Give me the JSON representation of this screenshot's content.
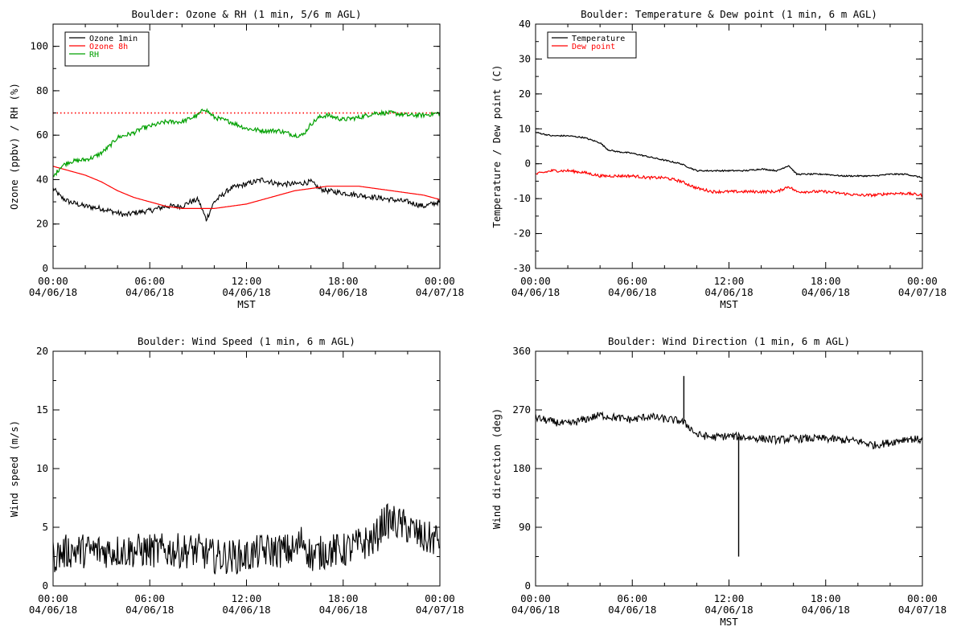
{
  "chart_data": [
    {
      "type": "line",
      "title": "Boulder: Ozone & RH (1 min, 5/6 m AGL)",
      "ylabel": "Ozone (ppbv) / RH (%)",
      "xlabel": "MST",
      "ylim": [
        0,
        110
      ],
      "yticks": [
        0,
        20,
        40,
        60,
        80,
        100
      ],
      "xticks": [
        {
          "hour": 0,
          "time": "00:00",
          "date": "04/06/18"
        },
        {
          "hour": 6,
          "time": "06:00",
          "date": "04/06/18"
        },
        {
          "hour": 12,
          "time": "12:00",
          "date": "04/06/18"
        },
        {
          "hour": 18,
          "time": "18:00",
          "date": "04/06/18"
        },
        {
          "hour": 24,
          "time": "00:00",
          "date": "04/07/18"
        }
      ],
      "legend": "top-left",
      "reference_line": {
        "value": 70,
        "color": "#ff0000",
        "style": "dotted"
      },
      "series": [
        {
          "name": "Ozone 1min",
          "color": "#000000",
          "noise": 1.2,
          "points": [
            [
              0,
              36
            ],
            [
              0.5,
              32
            ],
            [
              1,
              30
            ],
            [
              2,
              28
            ],
            [
              3,
              27
            ],
            [
              4,
              25
            ],
            [
              4.5,
              24
            ],
            [
              5,
              25
            ],
            [
              6,
              26
            ],
            [
              7,
              28
            ],
            [
              8,
              28
            ],
            [
              8.5,
              30
            ],
            [
              9,
              31
            ],
            [
              9.5,
              22
            ],
            [
              10,
              30
            ],
            [
              10.5,
              33
            ],
            [
              11,
              36
            ],
            [
              12,
              38
            ],
            [
              13,
              40
            ],
            [
              14,
              38
            ],
            [
              15,
              38
            ],
            [
              16,
              39
            ],
            [
              16.5,
              36
            ],
            [
              17,
              35
            ],
            [
              18,
              34
            ],
            [
              19,
              33
            ],
            [
              20,
              32
            ],
            [
              21,
              31
            ],
            [
              22,
              30
            ],
            [
              23,
              28
            ],
            [
              24,
              30
            ]
          ]
        },
        {
          "name": "Ozone 8h",
          "color": "#ff0000",
          "noise": 0,
          "points": [
            [
              0,
              46
            ],
            [
              1,
              44
            ],
            [
              2,
              42
            ],
            [
              3,
              39
            ],
            [
              4,
              35
            ],
            [
              5,
              32
            ],
            [
              6,
              30
            ],
            [
              7,
              28
            ],
            [
              8,
              27
            ],
            [
              9,
              27
            ],
            [
              10,
              27
            ],
            [
              11,
              28
            ],
            [
              12,
              29
            ],
            [
              13,
              31
            ],
            [
              14,
              33
            ],
            [
              15,
              35
            ],
            [
              16,
              36
            ],
            [
              17,
              37
            ],
            [
              18,
              37
            ],
            [
              19,
              37
            ],
            [
              20,
              36
            ],
            [
              21,
              35
            ],
            [
              22,
              34
            ],
            [
              23,
              33
            ],
            [
              24,
              31
            ]
          ]
        },
        {
          "name": "RH",
          "color": "#00a000",
          "noise": 1.0,
          "points": [
            [
              0,
              41
            ],
            [
              0.5,
              46
            ],
            [
              1,
              48
            ],
            [
              2,
              49
            ],
            [
              2.5,
              50
            ],
            [
              3,
              52
            ],
            [
              3.5,
              55
            ],
            [
              4,
              59
            ],
            [
              5,
              61
            ],
            [
              5.5,
              63
            ],
            [
              6,
              64
            ],
            [
              7,
              66
            ],
            [
              8,
              66
            ],
            [
              9,
              69
            ],
            [
              9.4,
              72
            ],
            [
              10,
              68
            ],
            [
              11,
              66
            ],
            [
              12,
              63
            ],
            [
              13,
              62
            ],
            [
              14,
              62
            ],
            [
              15,
              60
            ],
            [
              15.5,
              60
            ],
            [
              16,
              65
            ],
            [
              16.5,
              68
            ],
            [
              17,
              69
            ],
            [
              18,
              67
            ],
            [
              19,
              68
            ],
            [
              20,
              70
            ],
            [
              21,
              70
            ],
            [
              22,
              69
            ],
            [
              23,
              69
            ],
            [
              24,
              70
            ]
          ]
        }
      ]
    },
    {
      "type": "line",
      "title": "Boulder: Temperature & Dew point (1 min, 6 m AGL)",
      "ylabel": "Temperature / Dew point (C)",
      "xlabel": "MST",
      "ylim": [
        -30,
        40
      ],
      "yticks": [
        -30,
        -20,
        -10,
        0,
        10,
        20,
        30,
        40
      ],
      "xticks": [
        {
          "hour": 0,
          "time": "00:00",
          "date": "04/06/18"
        },
        {
          "hour": 6,
          "time": "06:00",
          "date": "04/06/18"
        },
        {
          "hour": 12,
          "time": "12:00",
          "date": "04/06/18"
        },
        {
          "hour": 18,
          "time": "18:00",
          "date": "04/06/18"
        },
        {
          "hour": 24,
          "time": "00:00",
          "date": "04/07/18"
        }
      ],
      "legend": "top-left",
      "series": [
        {
          "name": "Temperature",
          "color": "#000000",
          "noise": 0.2,
          "points": [
            [
              0,
              9
            ],
            [
              1,
              8
            ],
            [
              2,
              8
            ],
            [
              3,
              7.5
            ],
            [
              4,
              6
            ],
            [
              4.5,
              4
            ],
            [
              5,
              3.5
            ],
            [
              6,
              3
            ],
            [
              7,
              2
            ],
            [
              8,
              1
            ],
            [
              9,
              0
            ],
            [
              9.5,
              -1
            ],
            [
              10,
              -2
            ],
            [
              11,
              -2
            ],
            [
              12,
              -2
            ],
            [
              13,
              -2
            ],
            [
              14,
              -1.5
            ],
            [
              15,
              -2
            ],
            [
              15.7,
              -0.5
            ],
            [
              16.2,
              -3
            ],
            [
              17,
              -3
            ],
            [
              18,
              -3
            ],
            [
              19,
              -3.5
            ],
            [
              20,
              -3.5
            ],
            [
              21,
              -3.5
            ],
            [
              22,
              -3
            ],
            [
              23,
              -3
            ],
            [
              24,
              -4
            ]
          ]
        },
        {
          "name": "Dew point",
          "color": "#ff0000",
          "noise": 0.4,
          "points": [
            [
              0,
              -3
            ],
            [
              1,
              -2
            ],
            [
              2,
              -2
            ],
            [
              3,
              -2.5
            ],
            [
              4,
              -3.5
            ],
            [
              5,
              -3.5
            ],
            [
              6,
              -3.5
            ],
            [
              7,
              -4
            ],
            [
              8,
              -4
            ],
            [
              9,
              -5
            ],
            [
              9.5,
              -6
            ],
            [
              10,
              -7
            ],
            [
              11,
              -8
            ],
            [
              12,
              -8
            ],
            [
              13,
              -8
            ],
            [
              14,
              -8
            ],
            [
              15,
              -8
            ],
            [
              15.7,
              -6.5
            ],
            [
              16.2,
              -8
            ],
            [
              17,
              -8
            ],
            [
              18,
              -8
            ],
            [
              19,
              -8.5
            ],
            [
              20,
              -9
            ],
            [
              21,
              -9
            ],
            [
              22,
              -8.5
            ],
            [
              23,
              -8.5
            ],
            [
              24,
              -9
            ]
          ]
        }
      ]
    },
    {
      "type": "line",
      "title": "Boulder: Wind Speed (1 min, 6 m AGL)",
      "ylabel": "Wind speed (m/s)",
      "xlabel": "",
      "ylim": [
        0,
        20
      ],
      "yticks": [
        0,
        5,
        10,
        15,
        20
      ],
      "xticks": [
        {
          "hour": 0,
          "time": "00:00",
          "date": "04/06/18"
        },
        {
          "hour": 6,
          "time": "06:00",
          "date": "04/06/18"
        },
        {
          "hour": 12,
          "time": "12:00",
          "date": "04/06/18"
        },
        {
          "hour": 18,
          "time": "18:00",
          "date": "04/06/18"
        },
        {
          "hour": 24,
          "time": "00:00",
          "date": "04/07/18"
        }
      ],
      "series": [
        {
          "name": "",
          "color": "#000000",
          "noise": 1.5,
          "points": [
            [
              0,
              2.5
            ],
            [
              1,
              3
            ],
            [
              2,
              3
            ],
            [
              3,
              3
            ],
            [
              4,
              3
            ],
            [
              5,
              3
            ],
            [
              6,
              3
            ],
            [
              7,
              3
            ],
            [
              8,
              3
            ],
            [
              9,
              3
            ],
            [
              10,
              2.5
            ],
            [
              11,
              2.5
            ],
            [
              12,
              2.5
            ],
            [
              13,
              3
            ],
            [
              14,
              3
            ],
            [
              15,
              3
            ],
            [
              15.5,
              4
            ],
            [
              16,
              2.5
            ],
            [
              17,
              3
            ],
            [
              18,
              3
            ],
            [
              19,
              3.5
            ],
            [
              20,
              4
            ],
            [
              20.5,
              5.5
            ],
            [
              21,
              5.5
            ],
            [
              22,
              5
            ],
            [
              23,
              4
            ],
            [
              24,
              4
            ]
          ]
        }
      ]
    },
    {
      "type": "line",
      "title": "Boulder: Wind Direction (1 min, 6 m AGL)",
      "ylabel": "Wind direction (deg)",
      "xlabel": "MST",
      "ylim": [
        0,
        360
      ],
      "yticks": [
        0,
        90,
        180,
        270,
        360
      ],
      "xticks": [
        {
          "hour": 0,
          "time": "00:00",
          "date": "04/06/18"
        },
        {
          "hour": 6,
          "time": "06:00",
          "date": "04/06/18"
        },
        {
          "hour": 12,
          "time": "12:00",
          "date": "04/06/18"
        },
        {
          "hour": 18,
          "time": "18:00",
          "date": "04/06/18"
        },
        {
          "hour": 24,
          "time": "00:00",
          "date": "04/07/18"
        }
      ],
      "spikes": [
        [
          9.2,
          322
        ],
        [
          12.6,
          45
        ]
      ],
      "series": [
        {
          "name": "",
          "color": "#000000",
          "noise": 6,
          "points": [
            [
              0,
              258
            ],
            [
              1,
              252
            ],
            [
              2,
              248
            ],
            [
              3,
              255
            ],
            [
              4,
              262
            ],
            [
              5,
              258
            ],
            [
              6,
              255
            ],
            [
              7,
              260
            ],
            [
              8,
              256
            ],
            [
              9,
              253
            ],
            [
              9.5,
              245
            ],
            [
              10,
              232
            ],
            [
              11,
              228
            ],
            [
              12,
              230
            ],
            [
              13,
              228
            ],
            [
              14,
              226
            ],
            [
              15,
              224
            ],
            [
              16,
              226
            ],
            [
              17,
              226
            ],
            [
              18,
              226
            ],
            [
              19,
              224
            ],
            [
              20,
              222
            ],
            [
              21,
              216
            ],
            [
              22,
              220
            ],
            [
              23,
              226
            ],
            [
              24,
              224
            ]
          ]
        }
      ]
    }
  ]
}
